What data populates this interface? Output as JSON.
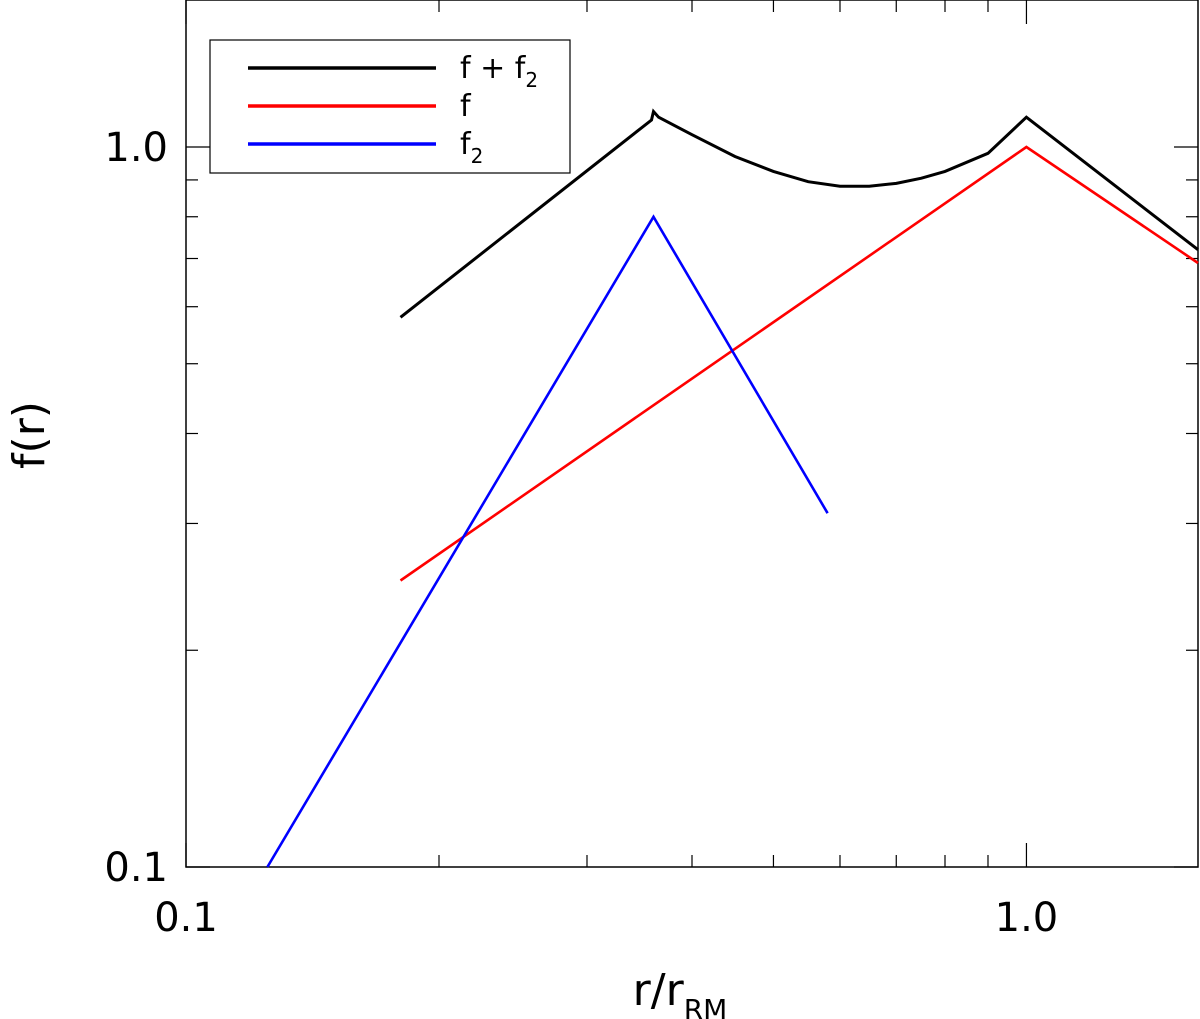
{
  "chart_data": {
    "type": "line",
    "xscale": "log",
    "yscale": "log",
    "xlim": [
      0.1,
      1.6
    ],
    "ylim": [
      0.1,
      1.6
    ],
    "xlabel": {
      "main": "r/r",
      "sub": "RM"
    },
    "ylabel": "f(r)",
    "xticks": [
      {
        "value": 0.1,
        "label": "0.1"
      },
      {
        "value": 1.0,
        "label": "1.0"
      }
    ],
    "yticks": [
      {
        "value": 0.1,
        "label": "0.1"
      },
      {
        "value": 1.0,
        "label": "1.0"
      }
    ],
    "legend_position": "top-left",
    "series": [
      {
        "name": "f + f2",
        "legend": {
          "main": "f  +  f",
          "sub": "2"
        },
        "color": "#000000",
        "points": [
          [
            0.18,
            0.58
          ],
          [
            0.358,
            1.09
          ],
          [
            0.36,
            1.12
          ],
          [
            0.365,
            1.1
          ],
          [
            0.4,
            1.04
          ],
          [
            0.45,
            0.97
          ],
          [
            0.5,
            0.925
          ],
          [
            0.55,
            0.895
          ],
          [
            0.6,
            0.882
          ],
          [
            0.65,
            0.882
          ],
          [
            0.7,
            0.89
          ],
          [
            0.75,
            0.905
          ],
          [
            0.8,
            0.925
          ],
          [
            0.9,
            0.98
          ],
          [
            1.0,
            1.1
          ],
          [
            1.6,
            0.72
          ]
        ]
      },
      {
        "name": "f",
        "legend": {
          "main": "f",
          "sub": ""
        },
        "color": "#ff0000",
        "points": [
          [
            0.18,
            0.25
          ],
          [
            1.0,
            1.0
          ],
          [
            1.6,
            0.69
          ]
        ]
      },
      {
        "name": "f2",
        "legend": {
          "main": "f",
          "sub": "2"
        },
        "color": "#0000ff",
        "points": [
          [
            0.125,
            0.1
          ],
          [
            0.36,
            0.8
          ],
          [
            0.58,
            0.31
          ]
        ]
      }
    ]
  }
}
